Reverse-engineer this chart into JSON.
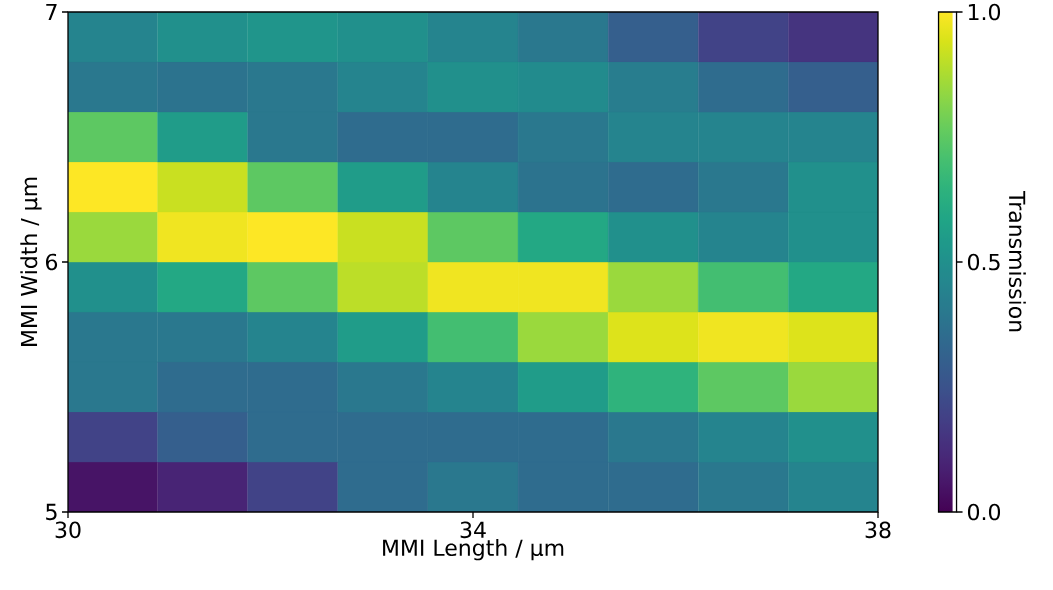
{
  "chart_data": {
    "type": "heatmap",
    "xlabel": "MMI Length / µm",
    "ylabel": "MMI Width / µm",
    "clabel": "Transmission",
    "x": [
      30.44,
      31.33,
      32.22,
      33.11,
      34.0,
      34.89,
      35.78,
      36.67,
      37.56
    ],
    "y": [
      6.9,
      6.7,
      6.5,
      6.3,
      6.1,
      5.9,
      5.7,
      5.5,
      5.3,
      5.1
    ],
    "cells": [
      [
        0.45,
        0.5,
        0.52,
        0.5,
        0.45,
        0.4,
        0.3,
        0.2,
        0.15
      ],
      [
        0.4,
        0.38,
        0.4,
        0.45,
        0.5,
        0.48,
        0.42,
        0.35,
        0.3
      ],
      [
        0.75,
        0.55,
        0.4,
        0.35,
        0.35,
        0.4,
        0.45,
        0.45,
        0.45
      ],
      [
        1.0,
        0.92,
        0.75,
        0.55,
        0.45,
        0.38,
        0.35,
        0.4,
        0.5
      ],
      [
        0.85,
        0.98,
        1.0,
        0.92,
        0.75,
        0.6,
        0.5,
        0.45,
        0.5
      ],
      [
        0.5,
        0.6,
        0.75,
        0.9,
        0.98,
        0.98,
        0.85,
        0.7,
        0.6
      ],
      [
        0.4,
        0.4,
        0.45,
        0.55,
        0.7,
        0.85,
        0.95,
        0.98,
        0.95
      ],
      [
        0.4,
        0.35,
        0.35,
        0.4,
        0.45,
        0.55,
        0.65,
        0.75,
        0.85
      ],
      [
        0.2,
        0.3,
        0.35,
        0.35,
        0.35,
        0.35,
        0.4,
        0.45,
        0.5
      ],
      [
        0.05,
        0.1,
        0.2,
        0.35,
        0.4,
        0.35,
        0.35,
        0.4,
        0.45
      ]
    ],
    "xlim": [
      30,
      38
    ],
    "ylim": [
      5,
      7
    ],
    "xticks": [
      30,
      34,
      38
    ],
    "yticks": [
      5,
      6,
      7
    ],
    "clim": [
      0,
      1
    ],
    "cticks": [
      {
        "value": 0,
        "label": "0.0"
      },
      {
        "value": 0.5,
        "label": "0.5"
      },
      {
        "value": 1,
        "label": "1.0"
      }
    ]
  }
}
